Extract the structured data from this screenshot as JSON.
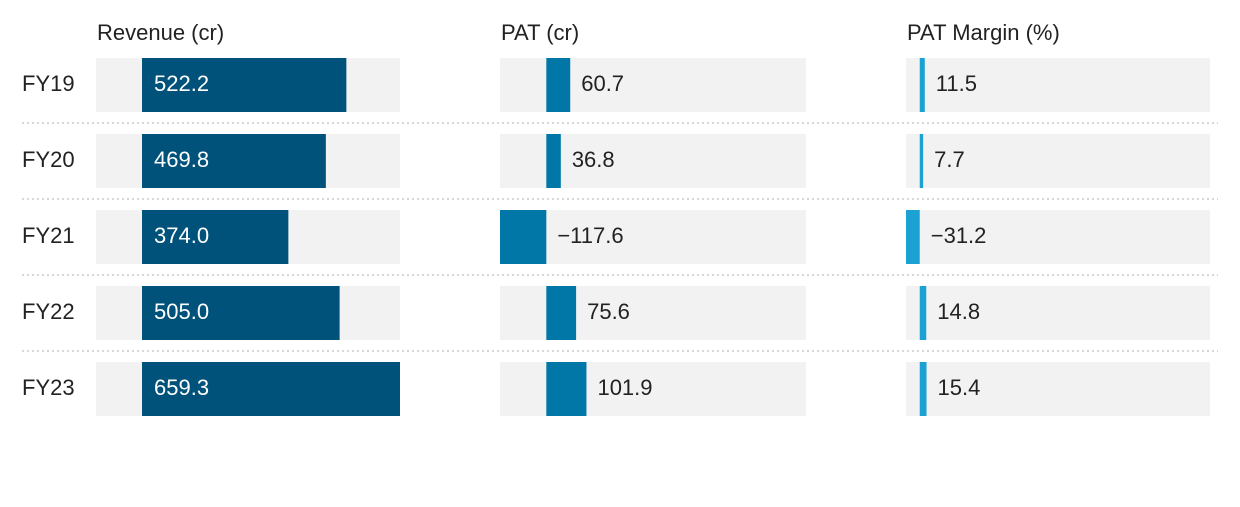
{
  "chart_data": {
    "type": "bar",
    "categories": [
      "FY19",
      "FY20",
      "FY21",
      "FY22",
      "FY23"
    ],
    "series": [
      {
        "name": "Revenue (cr)",
        "values": [
          522.2,
          469.8,
          374.0,
          505.0,
          659.3
        ],
        "labels": [
          "522.2",
          "469.8",
          "374.0",
          "505.0",
          "659.3"
        ],
        "domain": [
          -117.6,
          659.3
        ],
        "color": "#00527a",
        "label_inside": true
      },
      {
        "name": "PAT (cr)",
        "values": [
          60.7,
          36.8,
          -117.6,
          75.6,
          101.9
        ],
        "labels": [
          "60.7",
          "36.8",
          "−117.6",
          "75.6",
          "101.9"
        ],
        "domain": [
          -117.6,
          659.3
        ],
        "color": "#0077a6",
        "label_inside": false
      },
      {
        "name": "PAT Margin (%)",
        "values": [
          11.5,
          7.7,
          -31.2,
          14.8,
          15.4
        ],
        "labels": [
          "11.5",
          "7.7",
          "−31.2",
          "14.8",
          "15.4"
        ],
        "domain": [
          -31.2,
          659.3
        ],
        "color": "#1ba2d2",
        "label_inside": false
      }
    ],
    "colors": {
      "track": "#f2f2f2",
      "separator": "#cccccc",
      "text": "#222222",
      "text_inverse": "#ffffff"
    }
  }
}
